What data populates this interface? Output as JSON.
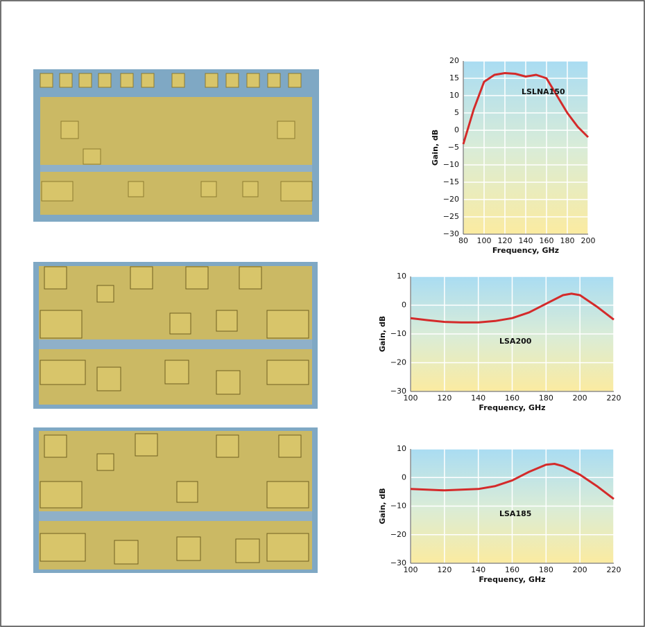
{
  "chart_data": [
    {
      "type": "line",
      "annotation": "LSLNA150",
      "xlabel": "Frequency, GHz",
      "ylabel": "Gain, dB",
      "x": [
        80,
        90,
        100,
        110,
        120,
        130,
        140,
        150,
        160,
        170,
        180,
        190,
        200
      ],
      "series": [
        {
          "color": "#d42a2a",
          "values": [
            -4,
            6,
            14,
            16,
            16.5,
            16.3,
            15.5,
            16,
            15,
            10,
            5,
            1,
            -2
          ]
        }
      ],
      "xlim": [
        80,
        200
      ],
      "xticks": [
        80,
        100,
        120,
        140,
        160,
        180,
        200
      ],
      "ylim": [
        -30,
        20
      ],
      "yticks": [
        {
          "value": -30,
          "label": "−30"
        },
        {
          "value": -25,
          "label": "−25"
        },
        {
          "value": -20,
          "label": "−20"
        },
        {
          "value": -15,
          "label": "−15"
        },
        {
          "value": -10,
          "label": "−10"
        },
        {
          "value": -5,
          "label": "−5"
        },
        0,
        5,
        10,
        15,
        20
      ],
      "grid": true
    },
    {
      "type": "line",
      "annotation": "LSA200",
      "xlabel": "Frequency, GHz",
      "ylabel": "Gain, dB",
      "x": [
        100,
        110,
        120,
        130,
        140,
        150,
        160,
        170,
        180,
        190,
        195,
        200,
        210,
        220
      ],
      "series": [
        {
          "color": "#d42a2a",
          "values": [
            -4.5,
            -5.2,
            -5.8,
            -6,
            -6,
            -5.5,
            -4.5,
            -2.5,
            0.5,
            3.5,
            4,
            3.5,
            -0.5,
            -5
          ]
        }
      ],
      "xlim": [
        100,
        220
      ],
      "xticks": [
        100,
        120,
        140,
        160,
        180,
        200,
        220
      ],
      "ylim": [
        -30,
        10
      ],
      "yticks": [
        {
          "value": -30,
          "label": "−30"
        },
        {
          "value": -20,
          "label": "−20"
        },
        {
          "value": -10,
          "label": "−10"
        },
        0,
        10
      ],
      "grid": true
    },
    {
      "type": "line",
      "annotation": "LSA185",
      "xlabel": "Frequency, GHz",
      "ylabel": "Gain, dB",
      "x": [
        100,
        120,
        140,
        150,
        160,
        170,
        180,
        185,
        190,
        200,
        210,
        220
      ],
      "series": [
        {
          "color": "#d42a2a",
          "values": [
            -4,
            -4.5,
            -4,
            -3,
            -1,
            2,
            4.5,
            4.8,
            4,
            1,
            -3,
            -7.5
          ]
        }
      ],
      "xlim": [
        100,
        220
      ],
      "xticks": [
        100,
        120,
        140,
        160,
        180,
        200,
        220
      ],
      "ylim": [
        -30,
        10
      ],
      "yticks": [
        {
          "value": -30,
          "label": "−30"
        },
        {
          "value": -20,
          "label": "−20"
        },
        {
          "value": -10,
          "label": "−10"
        },
        0,
        10
      ],
      "grid": true
    }
  ]
}
